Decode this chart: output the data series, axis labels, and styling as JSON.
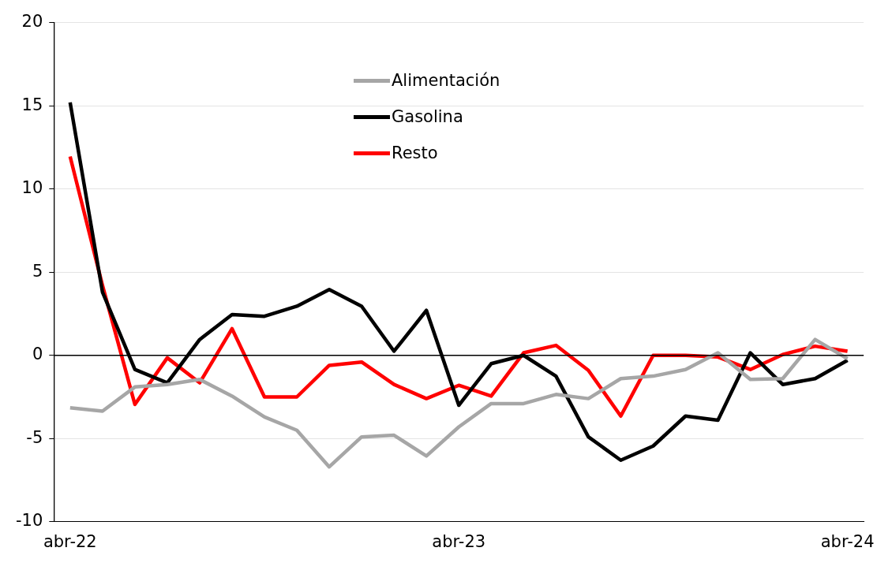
{
  "chart_data": {
    "type": "line",
    "categories": [
      "abr-22",
      null,
      null,
      null,
      null,
      null,
      null,
      null,
      null,
      null,
      null,
      null,
      "abr-23",
      null,
      null,
      null,
      null,
      null,
      null,
      null,
      null,
      null,
      null,
      null,
      "abr-24"
    ],
    "series": [
      {
        "name": "Alimentación",
        "color": "#a6a6a6",
        "values": [
          -3.15,
          -3.35,
          -1.9,
          -1.75,
          -1.45,
          -2.45,
          -3.7,
          -4.5,
          -6.7,
          -4.9,
          -4.8,
          -6.05,
          -4.3,
          -2.9,
          -2.9,
          -2.35,
          -2.6,
          -1.4,
          -1.25,
          -0.85,
          0.15,
          -1.45,
          -1.4,
          0.95,
          -0.2
        ]
      },
      {
        "name": "Gasolina",
        "color": "#000000",
        "values": [
          15.2,
          3.8,
          -0.85,
          -1.65,
          0.95,
          2.45,
          2.35,
          2.95,
          3.95,
          2.95,
          0.25,
          2.7,
          -3.0,
          -0.5,
          0.0,
          -1.25,
          -4.9,
          -6.3,
          -5.45,
          -3.65,
          -3.9,
          0.15,
          -1.75,
          -1.4,
          -0.3
        ]
      },
      {
        "name": "Resto",
        "color": "#ff0000",
        "values": [
          11.95,
          4.2,
          -2.95,
          -0.15,
          -1.65,
          1.6,
          -2.5,
          -2.5,
          -0.6,
          -0.4,
          -1.75,
          -2.6,
          -1.8,
          -2.45,
          0.15,
          0.6,
          -0.9,
          -3.65,
          0.0,
          0.0,
          -0.1,
          -0.85,
          0.05,
          0.55,
          0.25
        ]
      }
    ],
    "ylim": [
      -10,
      20
    ],
    "yticks": [
      -10,
      -5,
      0,
      5,
      10,
      15,
      20
    ],
    "ref_lines": [
      {
        "axis": "y",
        "value": 0,
        "color": "#000000"
      }
    ],
    "grid": "y",
    "legend": "top",
    "marker": "none",
    "line_style": "solid"
  }
}
